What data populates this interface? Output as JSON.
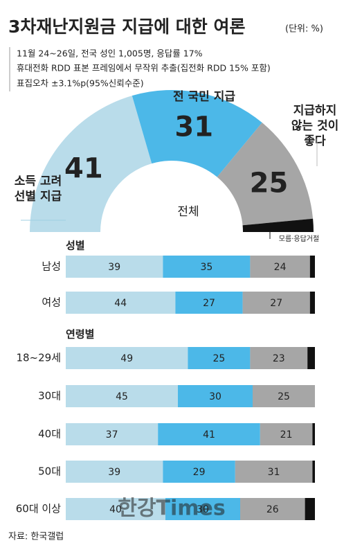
{
  "title": "3차재난지원금 지급에 대한 여론",
  "unit": "(단위: %)",
  "notes": [
    "11월 24~26일, 전국 성인 1,005명, 응답률 17%",
    "휴대전화 RDD 표본 프레임에서 무작위 추출(집전화 RDD 15% 포함)",
    "표집오차 ±3.1%p(95%신뢰수준)"
  ],
  "source": "자료: 한국갤럽",
  "watermark": "한강Times",
  "chart_data": [
    {
      "type": "donut",
      "center_label": "전체",
      "categories": [
        [
          "소득 고려",
          "선별 지급"
        ],
        [
          "전 국민 지급"
        ],
        [
          "지급하지",
          "않는 것이",
          "좋다"
        ],
        [
          "모름·응답거절"
        ]
      ],
      "values": [
        41,
        31,
        25,
        3
      ],
      "colors": [
        "#b9dcea",
        "#4cb8e8",
        "#a6a6a6",
        "#111111"
      ],
      "show_values": [
        true,
        true,
        true,
        false
      ]
    },
    {
      "type": "stacked-bar-horizontal",
      "groups": [
        {
          "label": "성별",
          "categories": [
            "남성",
            "여성"
          ]
        },
        {
          "label": "연령별",
          "categories": [
            "18~29세",
            "30대",
            "40대",
            "50대",
            "60대 이상"
          ]
        }
      ],
      "xlim": [
        0,
        100
      ],
      "series": [
        {
          "color": "#b9dcea",
          "values": [
            39,
            44,
            49,
            45,
            37,
            39,
            40
          ],
          "show_values": true
        },
        {
          "color": "#4cb8e8",
          "values": [
            35,
            27,
            25,
            30,
            41,
            29,
            30
          ],
          "show_values": true
        },
        {
          "color": "#a6a6a6",
          "values": [
            24,
            27,
            23,
            25,
            21,
            31,
            26
          ],
          "show_values": true
        },
        {
          "color": "#111111",
          "values": [
            2,
            2,
            3,
            0,
            1,
            1,
            4
          ],
          "show_values": false
        }
      ]
    }
  ]
}
